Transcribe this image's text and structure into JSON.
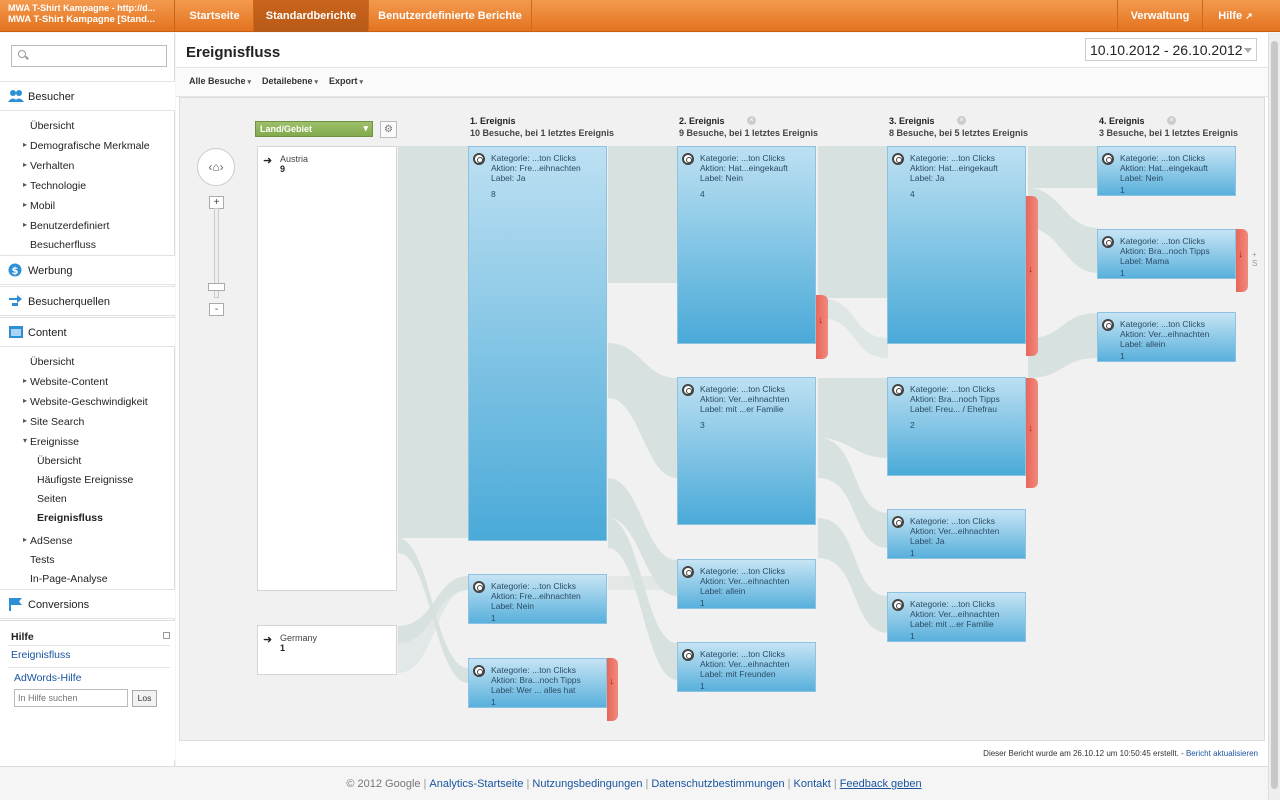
{
  "topbar": {
    "account_line1": "MWA T-Shirt Kampagne - http://d...",
    "account_line2": "MWA T-Shirt Kampagne [Stand...",
    "tabs": [
      "Startseite",
      "Standardberichte",
      "Benutzerdefinierte Berichte"
    ],
    "right": [
      "Verwaltung",
      "Hilfe"
    ]
  },
  "sidebar": {
    "search_placeholder": "",
    "sections": {
      "besucher": "Besucher",
      "werbung": "Werbung",
      "quellen": "Besucherquellen",
      "content": "Content",
      "conversions": "Conversions"
    },
    "besucher_items": [
      "Übersicht",
      "Demografische Merkmale",
      "Verhalten",
      "Technologie",
      "Mobil",
      "Benutzerdefiniert",
      "Besucherfluss"
    ],
    "content_items": [
      "Übersicht",
      "Website-Content",
      "Website-Geschwindigkeit",
      "Site Search",
      "Ereignisse"
    ],
    "ereignisse_items": [
      "Übersicht",
      "Häufigste Ereignisse",
      "Seiten",
      "Ereignisfluss"
    ],
    "content_items2": [
      "AdSense",
      "Tests",
      "In-Page-Analyse"
    ],
    "help": {
      "title": "Hilfe",
      "topic": "Ereignisfluss",
      "adwords": "AdWords-Hilfe",
      "search_placeholder": "In Hilfe suchen",
      "search_button": "Los"
    }
  },
  "main": {
    "title": "Ereignisfluss",
    "date_range": "10.10.2012 - 26.10.2012",
    "toolbar": [
      "Alle Besuche",
      "Detailebene",
      "Export"
    ],
    "footer_note": "Dieser Bericht wurde am 26.10.12 um 10:50:45 erstellt. -",
    "refresh_link": "Bericht aktualisieren"
  },
  "flow": {
    "dimension": "Land/Gebiet",
    "columns": [
      {
        "title": "1. Ereignis",
        "sub": "10 Besuche, bei 1 letztes Ereignis"
      },
      {
        "title": "2. Ereignis",
        "sub": "9 Besuche, bei 1 letztes Ereignis"
      },
      {
        "title": "3. Ereignis",
        "sub": "8 Besuche, bei 5 letztes Ereignis"
      },
      {
        "title": "4. Ereignis",
        "sub": "3 Besuche, bei 1 letztes Ereignis"
      }
    ],
    "countries": [
      {
        "name": "Austria",
        "count": "9"
      },
      {
        "name": "Germany",
        "count": "1"
      }
    ],
    "nodes": {
      "c1": [
        {
          "l1": "Kategorie: ...ton Clicks",
          "l2": "Aktion: Fre...eihnachten",
          "l3": "Label: Ja",
          "count": "8"
        },
        {
          "l1": "Kategorie: ...ton Clicks",
          "l2": "Aktion: Fre...eihnachten",
          "l3": "Label: Nein",
          "count": "1"
        },
        {
          "l1": "Kategorie: ...ton Clicks",
          "l2": "Aktion: Bra...noch Tipps",
          "l3": "Label: Wer ... alles hat",
          "count": "1"
        }
      ],
      "c2": [
        {
          "l1": "Kategorie: ...ton Clicks",
          "l2": "Aktion: Hat...eingekauft",
          "l3": "Label: Nein",
          "count": "4"
        },
        {
          "l1": "Kategorie: ...ton Clicks",
          "l2": "Aktion: Ver...eihnachten",
          "l3": "Label: mit ...er Familie",
          "count": "3"
        },
        {
          "l1": "Kategorie: ...ton Clicks",
          "l2": "Aktion: Ver...eihnachten",
          "l3": "Label: allein",
          "count": "1"
        },
        {
          "l1": "Kategorie: ...ton Clicks",
          "l2": "Aktion: Ver...eihnachten",
          "l3": "Label: mit Freunden",
          "count": "1"
        }
      ],
      "c3": [
        {
          "l1": "Kategorie: ...ton Clicks",
          "l2": "Aktion: Hat...eingekauft",
          "l3": "Label: Ja",
          "count": "4"
        },
        {
          "l1": "Kategorie: ...ton Clicks",
          "l2": "Aktion: Bra...noch Tipps",
          "l3": "Label: Freu... / Ehefrau",
          "count": "2"
        },
        {
          "l1": "Kategorie: ...ton Clicks",
          "l2": "Aktion: Ver...eihnachten",
          "l3": "Label: Ja",
          "count": "1"
        },
        {
          "l1": "Kategorie: ...ton Clicks",
          "l2": "Aktion: Ver...eihnachten",
          "l3": "Label: mit ...er Familie",
          "count": "1"
        }
      ],
      "c4": [
        {
          "l1": "Kategorie: ...ton Clicks",
          "l2": "Aktion: Hat...eingekauft",
          "l3": "Label: Nein",
          "count": "1"
        },
        {
          "l1": "Kategorie: ...ton Clicks",
          "l2": "Aktion: Bra...noch Tipps",
          "l3": "Label: Mama",
          "count": "1"
        },
        {
          "l1": "Kategorie: ...ton Clicks",
          "l2": "Aktion: Ver...eihnachten",
          "l3": "Label: allein",
          "count": "1"
        }
      ]
    },
    "more_label": "+ S"
  },
  "footer": {
    "copyright": "© 2012 Google",
    "links": [
      "Analytics-Startseite",
      "Nutzungsbedingungen",
      "Datenschutzbestimmungen",
      "Kontakt",
      "Feedback geben"
    ]
  },
  "colors": {
    "brand": "#e97b2a",
    "node": "#4aaad8",
    "dropoff": "#e8665a",
    "link": "#1a55a0"
  }
}
